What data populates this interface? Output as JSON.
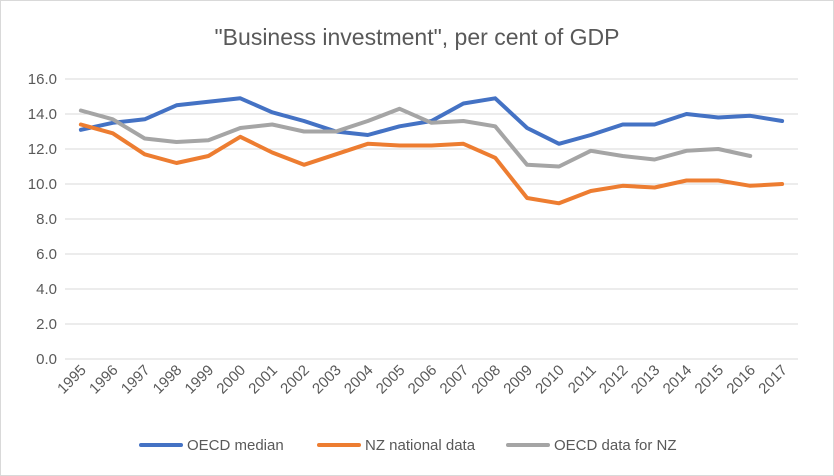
{
  "chart_data": {
    "type": "line",
    "title": "\"Business investment\", per cent of GDP",
    "xlabel": "",
    "ylabel": "",
    "ylim": [
      0,
      16
    ],
    "yticks": [
      "0.0",
      "2.0",
      "4.0",
      "6.0",
      "8.0",
      "10.0",
      "12.0",
      "14.0",
      "16.0"
    ],
    "grid": true,
    "legend_position": "bottom",
    "categories": [
      "1995",
      "1996",
      "1997",
      "1998",
      "1999",
      "2000",
      "2001",
      "2002",
      "2003",
      "2004",
      "2005",
      "2006",
      "2007",
      "2008",
      "2009",
      "2010",
      "2011",
      "2012",
      "2013",
      "2014",
      "2015",
      "2016",
      "2017"
    ],
    "series": [
      {
        "name": "OECD median",
        "color": "#4472c4",
        "values": [
          13.1,
          13.5,
          13.7,
          14.5,
          14.7,
          14.9,
          14.1,
          13.6,
          13.0,
          12.8,
          13.3,
          13.6,
          14.6,
          14.9,
          13.2,
          12.3,
          12.8,
          13.4,
          13.4,
          14.0,
          13.8,
          13.9,
          13.6
        ]
      },
      {
        "name": "NZ national data",
        "color": "#ed7d31",
        "values": [
          13.4,
          12.9,
          11.7,
          11.2,
          11.6,
          12.7,
          11.8,
          11.1,
          11.7,
          12.3,
          12.2,
          12.2,
          12.3,
          11.5,
          9.2,
          8.9,
          9.6,
          9.9,
          9.8,
          10.2,
          10.2,
          9.9,
          10.0
        ]
      },
      {
        "name": "OECD data for NZ",
        "color": "#a5a5a5",
        "values": [
          14.2,
          13.7,
          12.6,
          12.4,
          12.5,
          13.2,
          13.4,
          13.0,
          13.0,
          13.6,
          14.3,
          13.5,
          13.6,
          13.3,
          11.1,
          11.0,
          11.9,
          11.6,
          11.4,
          11.9,
          12.0,
          11.6,
          null
        ]
      }
    ]
  }
}
